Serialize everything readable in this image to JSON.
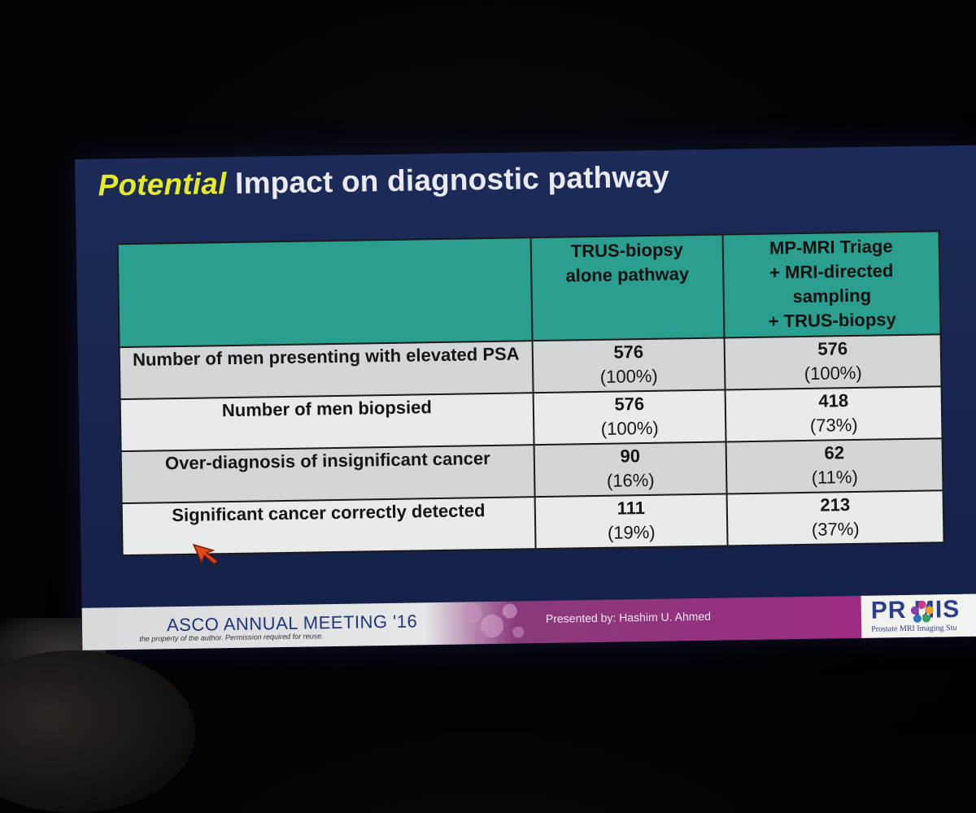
{
  "slide": {
    "title_emphasis": "Potential",
    "title_rest": " Impact on diagnostic pathway"
  },
  "table": {
    "headers": [
      "",
      "TRUS-biopsy alone pathway",
      "MP-MRI Triage + MRI-directed sampling + TRUS-biopsy"
    ],
    "header_lines": {
      "col2": [
        "TRUS-biopsy",
        "alone pathway"
      ],
      "col3": [
        "MP-MRI Triage",
        "+ MRI-directed",
        "sampling",
        "+ TRUS-biopsy"
      ]
    },
    "rows": [
      {
        "label": "Number of men presenting with elevated PSA",
        "trus_value": "576",
        "trus_pct": "(100%)",
        "mri_value": "576",
        "mri_pct": "(100%)"
      },
      {
        "label": "Number of men biopsied",
        "trus_value": "576",
        "trus_pct": "(100%)",
        "mri_value": "418",
        "mri_pct": "(73%)"
      },
      {
        "label": "Over-diagnosis of insignificant cancer",
        "trus_value": "90",
        "trus_pct": "(16%)",
        "mri_value": "62",
        "mri_pct": "(11%)"
      },
      {
        "label": "Significant cancer correctly detected",
        "trus_value": "111",
        "trus_pct": "(19%)",
        "mri_value": "213",
        "mri_pct": "(37%)"
      }
    ]
  },
  "footer": {
    "conference": "ASCO ANNUAL MEETING '16",
    "copyright": "the property of the author. Permission required for reuse.",
    "presenter": "Presented by: Hashim U. Ahmed",
    "logo_name": "PR  MIS",
    "logo_tagline": "Prostate MRI Imaging Stu"
  },
  "colors": {
    "slide_bg": "#1c2b58",
    "title_emphasis": "#e6ea2a",
    "table_header": "#2a9e8f",
    "footer_accent": "#962f80"
  },
  "icons": {
    "pointer": "red-arrow-cursor-icon"
  }
}
